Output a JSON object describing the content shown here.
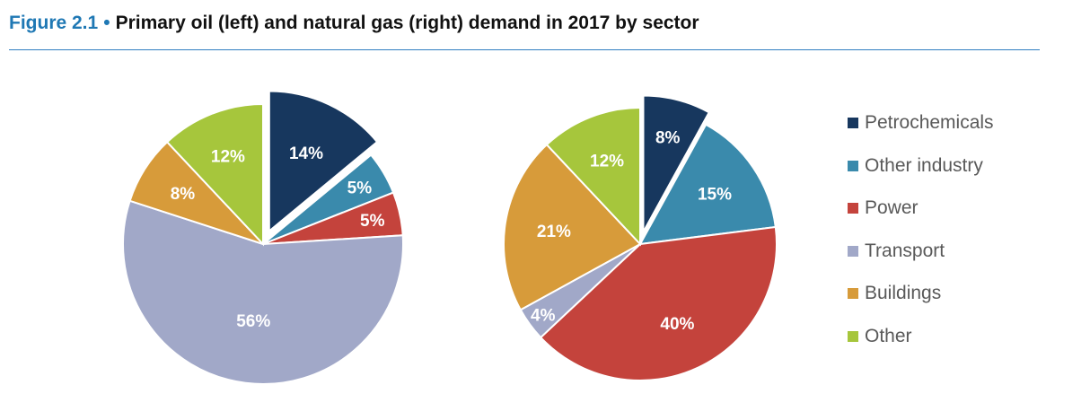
{
  "header": {
    "figure_label": "Figure 2.1",
    "bullet": "•",
    "title": "Primary oil (left) and natural gas (right) demand in 2017 by sector"
  },
  "colors": {
    "petrochemicals": "#17375e",
    "other_industry": "#3a8aac",
    "power": "#c4433c",
    "transport": "#a1a8c8",
    "buildings": "#d79b3a",
    "other": "#a6c63c",
    "accent": "#1f78b4"
  },
  "legend": [
    {
      "key": "petrochemicals",
      "label": "Petrochemicals"
    },
    {
      "key": "other_industry",
      "label": "Other industry"
    },
    {
      "key": "power",
      "label": "Power"
    },
    {
      "key": "transport",
      "label": "Transport"
    },
    {
      "key": "buildings",
      "label": "Buildings"
    },
    {
      "key": "other",
      "label": "Other"
    }
  ],
  "chart_data": [
    {
      "type": "pie",
      "title": "",
      "categories": [
        "Petrochemicals",
        "Other industry",
        "Power",
        "Transport",
        "Buildings",
        "Other"
      ],
      "values": [
        14,
        5,
        5,
        56,
        8,
        12
      ],
      "labels": [
        "14%",
        "5%",
        "5%",
        "56%",
        "8%",
        "12%"
      ],
      "exploded": [
        "Petrochemicals"
      ]
    },
    {
      "type": "pie",
      "title": "",
      "categories": [
        "Petrochemicals",
        "Other industry",
        "Power",
        "Transport",
        "Buildings",
        "Other"
      ],
      "values": [
        8,
        15,
        40,
        4,
        21,
        12
      ],
      "labels": [
        "8%",
        "15%",
        "40%",
        "4%",
        "21%",
        "12%"
      ],
      "exploded": [
        "Petrochemicals"
      ]
    }
  ]
}
